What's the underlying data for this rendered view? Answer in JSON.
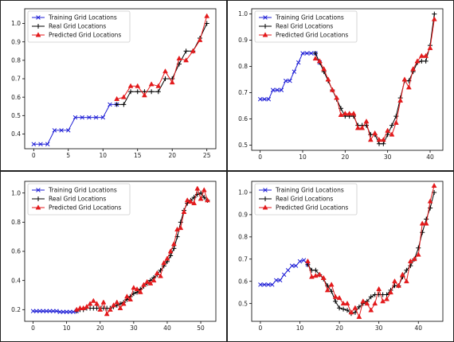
{
  "chart_data": [
    {
      "type": "line",
      "legend": {
        "placement": "upper-left"
      },
      "xlim": [
        -1.3,
        26.3
      ],
      "ylim": [
        0.32,
        1.08
      ],
      "xticks": [
        0,
        5,
        10,
        15,
        20,
        25
      ],
      "yticks": [
        0.4,
        0.5,
        0.6,
        0.7,
        0.8,
        0.9,
        1.0
      ],
      "ytick_labels": [
        "0.4",
        "0.5",
        "0.6",
        "0.7",
        "0.8",
        "0.9",
        "1.0"
      ],
      "series": [
        {
          "name": "Training Grid Locations",
          "color": "#1f1fd6",
          "marker": "x",
          "x": [
            0,
            1,
            2,
            3,
            4,
            5,
            6,
            7,
            8,
            9,
            10,
            11,
            12
          ],
          "y": [
            0.345,
            0.345,
            0.345,
            0.42,
            0.42,
            0.42,
            0.49,
            0.49,
            0.49,
            0.49,
            0.49,
            0.56,
            0.56
          ]
        },
        {
          "name": "Real Grid Locations",
          "color": "#000000",
          "marker": "+",
          "x": [
            12,
            13,
            14,
            15,
            16,
            17,
            18,
            19,
            20,
            21,
            22,
            23,
            24,
            25
          ],
          "y": [
            0.56,
            0.56,
            0.63,
            0.63,
            0.63,
            0.63,
            0.63,
            0.7,
            0.7,
            0.78,
            0.85,
            0.85,
            0.92,
            1.0
          ]
        },
        {
          "name": "Predicted Grid Locations",
          "color": "#e31a1c",
          "marker": "^",
          "x": [
            12,
            13,
            14,
            15,
            16,
            17,
            18,
            19,
            20,
            21,
            22,
            23,
            24,
            25
          ],
          "y": [
            0.59,
            0.6,
            0.66,
            0.66,
            0.61,
            0.67,
            0.66,
            0.74,
            0.68,
            0.81,
            0.8,
            0.85,
            0.91,
            1.04
          ]
        }
      ]
    },
    {
      "type": "line",
      "legend": {
        "placement": "upper-left"
      },
      "xlim": [
        -2,
        43
      ],
      "ylim": [
        0.48,
        1.02
      ],
      "xticks": [
        0,
        10,
        20,
        30,
        40
      ],
      "yticks": [
        0.5,
        0.6,
        0.7,
        0.8,
        0.9,
        1.0
      ],
      "ytick_labels": [
        "0.5",
        "0.6",
        "0.7",
        "0.8",
        "0.9",
        "1.0"
      ],
      "series": [
        {
          "name": "Training Grid Locations",
          "color": "#1f1fd6",
          "marker": "x",
          "x": [
            0,
            1,
            2,
            3,
            4,
            5,
            6,
            7,
            8,
            9,
            10,
            11,
            12,
            13,
            14
          ],
          "y": [
            0.675,
            0.675,
            0.675,
            0.71,
            0.71,
            0.71,
            0.745,
            0.745,
            0.78,
            0.815,
            0.85,
            0.85,
            0.85,
            0.85,
            0.815
          ]
        },
        {
          "name": "Real Grid Locations",
          "color": "#000000",
          "marker": "+",
          "x": [
            13,
            14,
            15,
            16,
            17,
            18,
            19,
            20,
            21,
            22,
            23,
            24,
            25,
            26,
            27,
            28,
            29,
            30,
            31,
            32,
            33,
            34,
            35,
            36,
            37,
            38,
            39,
            40,
            41
          ],
          "y": [
            0.85,
            0.815,
            0.78,
            0.745,
            0.71,
            0.675,
            0.64,
            0.61,
            0.61,
            0.61,
            0.575,
            0.575,
            0.575,
            0.54,
            0.54,
            0.505,
            0.505,
            0.54,
            0.575,
            0.61,
            0.68,
            0.745,
            0.745,
            0.78,
            0.815,
            0.82,
            0.82,
            0.88,
            1.0
          ]
        },
        {
          "name": "Predicted Grid Locations",
          "color": "#e31a1c",
          "marker": "^",
          "x": [
            13,
            14,
            15,
            16,
            17,
            18,
            19,
            20,
            21,
            22,
            23,
            24,
            25,
            26,
            27,
            28,
            29,
            30,
            31,
            32,
            33,
            34,
            35,
            36,
            37,
            38,
            39,
            40,
            41
          ],
          "y": [
            0.83,
            0.82,
            0.79,
            0.75,
            0.71,
            0.68,
            0.615,
            0.62,
            0.62,
            0.62,
            0.565,
            0.565,
            0.59,
            0.52,
            0.545,
            0.52,
            0.52,
            0.555,
            0.54,
            0.585,
            0.67,
            0.75,
            0.72,
            0.79,
            0.82,
            0.84,
            0.84,
            0.87,
            0.98
          ]
        }
      ]
    },
    {
      "type": "line",
      "legend": {
        "placement": "upper-left"
      },
      "xlim": [
        -2.5,
        54.5
      ],
      "ylim": [
        0.12,
        1.08
      ],
      "xticks": [
        0,
        10,
        20,
        30,
        40,
        50
      ],
      "yticks": [
        0.2,
        0.4,
        0.6,
        0.8,
        1.0
      ],
      "ytick_labels": [
        "0.2",
        "0.4",
        "0.6",
        "0.8",
        "1.0"
      ],
      "series": [
        {
          "name": "Training Grid Locations",
          "color": "#1f1fd6",
          "marker": "x",
          "x": [
            0,
            1,
            2,
            3,
            4,
            5,
            6,
            7,
            8,
            9,
            10,
            11,
            12,
            13
          ],
          "y": [
            0.19,
            0.19,
            0.19,
            0.19,
            0.19,
            0.19,
            0.19,
            0.19,
            0.185,
            0.185,
            0.185,
            0.185,
            0.185,
            0.19
          ]
        },
        {
          "name": "Real Grid Locations",
          "color": "#000000",
          "marker": "+",
          "x": [
            13,
            14,
            15,
            16,
            17,
            18,
            19,
            20,
            21,
            22,
            23,
            24,
            25,
            26,
            27,
            28,
            29,
            30,
            31,
            32,
            33,
            34,
            35,
            36,
            37,
            38,
            39,
            40,
            41,
            42,
            43,
            44,
            45,
            46,
            47,
            48,
            49,
            50,
            51,
            52
          ],
          "y": [
            0.19,
            0.2,
            0.2,
            0.21,
            0.21,
            0.21,
            0.21,
            0.21,
            0.21,
            0.21,
            0.21,
            0.22,
            0.23,
            0.24,
            0.25,
            0.27,
            0.29,
            0.31,
            0.32,
            0.34,
            0.36,
            0.38,
            0.4,
            0.42,
            0.44,
            0.47,
            0.5,
            0.53,
            0.57,
            0.62,
            0.7,
            0.8,
            0.88,
            0.93,
            0.95,
            0.97,
            0.99,
            1.0,
            0.97,
            0.95
          ]
        },
        {
          "name": "Predicted Grid Locations",
          "color": "#e31a1c",
          "marker": "^",
          "x": [
            13,
            14,
            15,
            16,
            17,
            18,
            19,
            20,
            21,
            22,
            23,
            24,
            25,
            26,
            27,
            28,
            29,
            30,
            31,
            32,
            33,
            34,
            35,
            36,
            37,
            38,
            39,
            40,
            41,
            42,
            43,
            44,
            45,
            46,
            47,
            48,
            49,
            50,
            51,
            52
          ],
          "y": [
            0.2,
            0.21,
            0.21,
            0.22,
            0.24,
            0.26,
            0.24,
            0.2,
            0.25,
            0.17,
            0.2,
            0.23,
            0.25,
            0.21,
            0.24,
            0.29,
            0.27,
            0.35,
            0.34,
            0.32,
            0.37,
            0.39,
            0.38,
            0.4,
            0.45,
            0.43,
            0.52,
            0.55,
            0.6,
            0.65,
            0.75,
            0.76,
            0.87,
            0.95,
            0.94,
            0.93,
            1.03,
            0.96,
            1.02,
            0.95
          ]
        }
      ]
    },
    {
      "type": "line",
      "legend": {
        "placement": "upper-left"
      },
      "xlim": [
        -2.2,
        46.2
      ],
      "ylim": [
        0.42,
        1.05
      ],
      "xticks": [
        0,
        10,
        20,
        30,
        40
      ],
      "yticks": [
        0.5,
        0.6,
        0.7,
        0.8,
        0.9,
        1.0
      ],
      "ytick_labels": [
        "0.5",
        "0.6",
        "0.7",
        "0.8",
        "0.9",
        "1.0"
      ],
      "series": [
        {
          "name": "Training Grid Locations",
          "color": "#1f1fd6",
          "marker": "x",
          "x": [
            0,
            1,
            2,
            3,
            4,
            5,
            6,
            7,
            8,
            9,
            10,
            11,
            12
          ],
          "y": [
            0.585,
            0.585,
            0.585,
            0.585,
            0.605,
            0.605,
            0.63,
            0.65,
            0.67,
            0.67,
            0.69,
            0.695,
            0.675
          ]
        },
        {
          "name": "Real Grid Locations",
          "color": "#000000",
          "marker": "+",
          "x": [
            12,
            13,
            14,
            15,
            16,
            17,
            18,
            19,
            20,
            21,
            22,
            23,
            24,
            25,
            26,
            27,
            28,
            29,
            30,
            31,
            32,
            33,
            34,
            35,
            36,
            37,
            38,
            39,
            40,
            41,
            42,
            43,
            44
          ],
          "y": [
            0.675,
            0.65,
            0.65,
            0.63,
            0.61,
            0.58,
            0.555,
            0.51,
            0.48,
            0.475,
            0.47,
            0.455,
            0.46,
            0.485,
            0.5,
            0.51,
            0.53,
            0.54,
            0.54,
            0.54,
            0.54,
            0.56,
            0.58,
            0.58,
            0.62,
            0.65,
            0.67,
            0.7,
            0.75,
            0.82,
            0.88,
            0.93,
            1.0
          ]
        },
        {
          "name": "Predicted Grid Locations",
          "color": "#e31a1c",
          "marker": "^",
          "x": [
            12,
            13,
            14,
            15,
            16,
            17,
            18,
            19,
            20,
            21,
            22,
            23,
            24,
            25,
            26,
            27,
            28,
            29,
            30,
            31,
            32,
            33,
            34,
            35,
            36,
            37,
            38,
            39,
            40,
            41,
            42,
            43,
            44
          ],
          "y": [
            0.69,
            0.62,
            0.625,
            0.63,
            0.615,
            0.56,
            0.585,
            0.53,
            0.525,
            0.5,
            0.5,
            0.46,
            0.48,
            0.44,
            0.51,
            0.5,
            0.47,
            0.5,
            0.565,
            0.51,
            0.52,
            0.55,
            0.6,
            0.58,
            0.63,
            0.6,
            0.69,
            0.7,
            0.72,
            0.86,
            0.86,
            0.96,
            1.03
          ]
        }
      ]
    }
  ]
}
